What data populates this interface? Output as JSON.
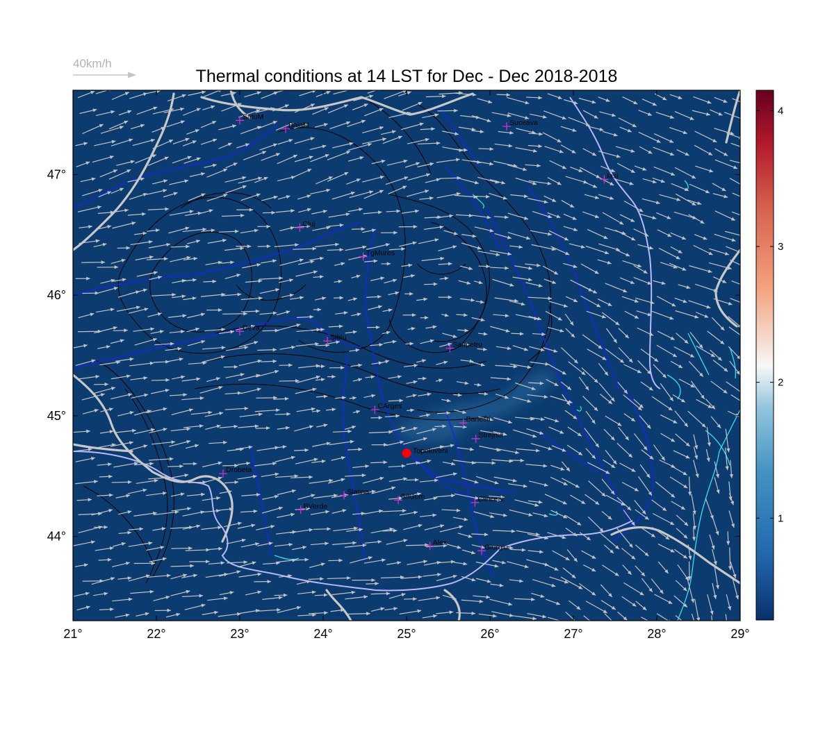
{
  "title": "Thermal conditions at 14 LST for Dec - Dec  2018-2018",
  "wind_scale": {
    "label": "40km/h"
  },
  "colors": {
    "background_field": "#0b3b6f",
    "field_patch_light": "#2f6ea3",
    "topo_contour": "#000000",
    "borders": "#c8c8c8",
    "rivers": "#1428e0",
    "danube": "#b8b8ff",
    "lakes_coast": "#33e0ee",
    "wind_arrows": "#c4c4c4",
    "city_marker": "#cc33cc",
    "site_marker": "#ff0000",
    "colormap": [
      "#08306b",
      "#2166ac",
      "#4393c3",
      "#92c5de",
      "#f7f7f7",
      "#f4a582",
      "#d6604d",
      "#b2182b",
      "#67001f"
    ]
  },
  "map": {
    "lon_range": [
      21,
      29
    ],
    "lat_range": [
      43.3,
      47.7
    ],
    "lon_ticks": [
      {
        "value": 21,
        "label": "21°"
      },
      {
        "value": 22,
        "label": "22°"
      },
      {
        "value": 23,
        "label": "23°"
      },
      {
        "value": 24,
        "label": "24°"
      },
      {
        "value": 25,
        "label": "25°"
      },
      {
        "value": 26,
        "label": "26°"
      },
      {
        "value": 27,
        "label": "27°"
      },
      {
        "value": 28,
        "label": "28°"
      },
      {
        "value": 29,
        "label": "29°"
      }
    ],
    "lat_ticks": [
      {
        "value": 44,
        "label": "44°"
      },
      {
        "value": 45,
        "label": "45°"
      },
      {
        "value": 46,
        "label": "46°"
      },
      {
        "value": 47,
        "label": "47°"
      }
    ]
  },
  "colorbar": {
    "range": [
      0.25,
      4.15
    ],
    "ticks": [
      {
        "value": 1,
        "label": "1"
      },
      {
        "value": 2,
        "label": "2"
      },
      {
        "value": 3,
        "label": "3"
      },
      {
        "value": 4,
        "label": "4"
      }
    ]
  },
  "cities": [
    {
      "name": "SatuM",
      "lon": 23.0,
      "lat": 47.45
    },
    {
      "name": "BaiaM",
      "lon": 23.55,
      "lat": 47.38
    },
    {
      "name": "Suceava",
      "lon": 26.2,
      "lat": 47.4
    },
    {
      "name": "Iasi",
      "lon": 27.37,
      "lat": 46.96
    },
    {
      "name": "Cluj",
      "lon": 23.72,
      "lat": 46.56
    },
    {
      "name": "TgMures",
      "lon": 24.48,
      "lat": 46.32
    },
    {
      "name": "Deva",
      "lon": 23.0,
      "lat": 45.7
    },
    {
      "name": "Sibiu",
      "lon": 24.05,
      "lat": 45.62
    },
    {
      "name": "Sanpetru",
      "lon": 25.52,
      "lat": 45.56
    },
    {
      "name": "CArges",
      "lon": 24.62,
      "lat": 45.05
    },
    {
      "name": "Banesti",
      "lon": 25.68,
      "lat": 44.94
    },
    {
      "name": "Strejnic",
      "lon": 25.83,
      "lat": 44.81
    },
    {
      "name": "Drobeta",
      "lon": 22.8,
      "lat": 44.52
    },
    {
      "name": "Slatina",
      "lon": 24.25,
      "lat": 44.34
    },
    {
      "name": "SilGum",
      "lon": 24.9,
      "lat": 44.3
    },
    {
      "name": "Clinceni",
      "lon": 25.82,
      "lat": 44.28
    },
    {
      "name": "BVerde",
      "lon": 23.73,
      "lat": 44.22
    },
    {
      "name": "Alex",
      "lon": 25.28,
      "lat": 43.92
    },
    {
      "name": "Giurgiu",
      "lon": 25.9,
      "lat": 43.88
    }
  ],
  "site": {
    "name": "Topoloveni",
    "lon": 25.0,
    "lat": 44.69
  }
}
